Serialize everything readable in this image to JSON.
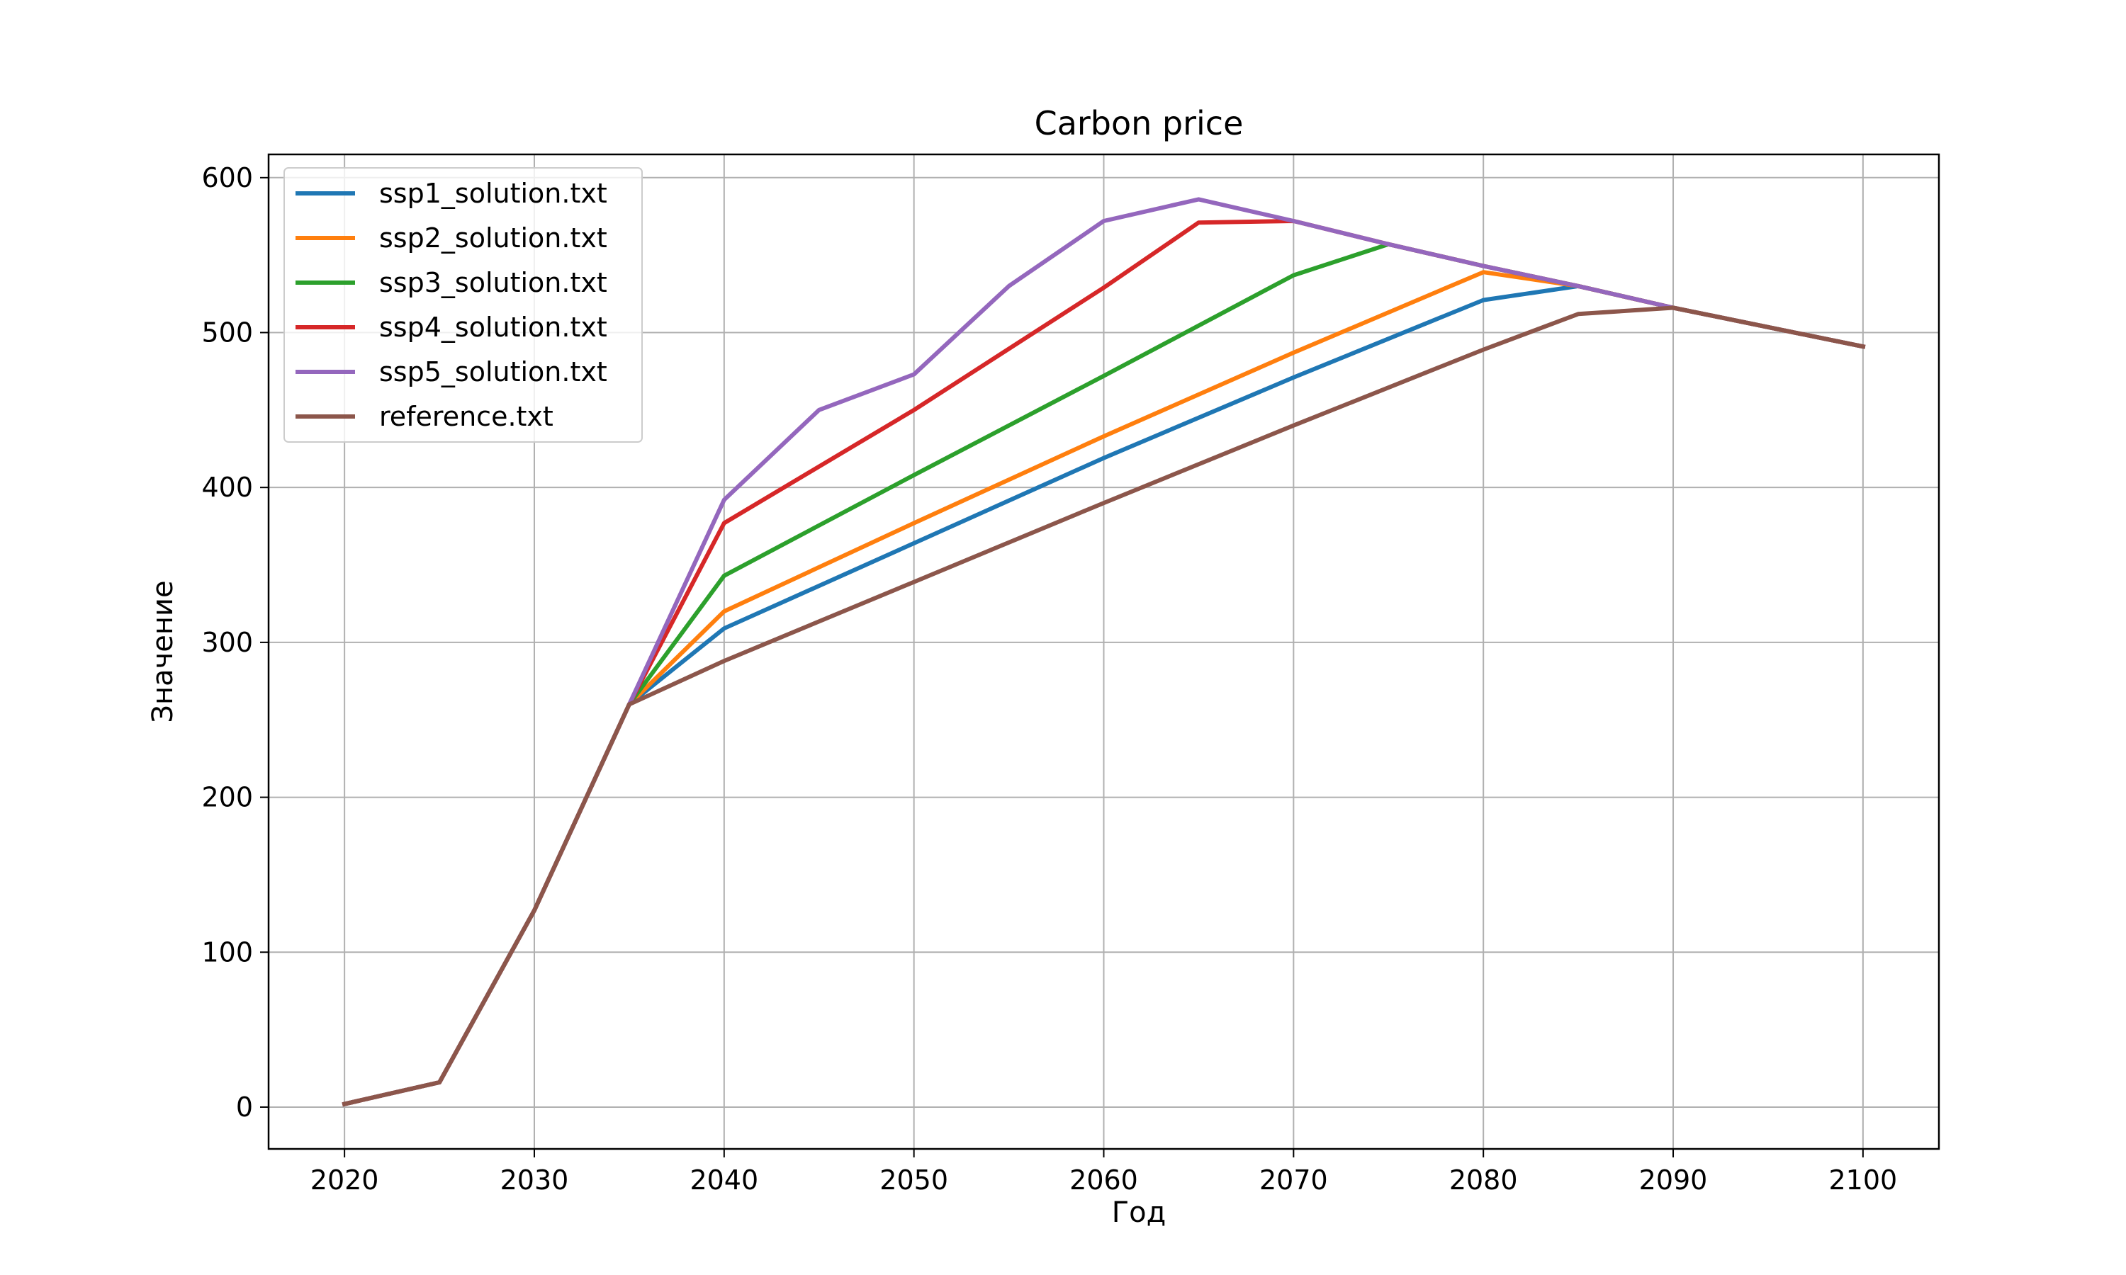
{
  "chart_data": {
    "type": "line",
    "title": "Carbon price",
    "xlabel": "Год",
    "ylabel": "Значение",
    "xlim": [
      2016,
      2104
    ],
    "ylim": [
      -27,
      615
    ],
    "xticks": [
      2020,
      2030,
      2040,
      2050,
      2060,
      2070,
      2080,
      2090,
      2100
    ],
    "yticks": [
      0,
      100,
      200,
      300,
      400,
      500,
      600
    ],
    "grid": true,
    "legend_position": "top-left",
    "series": [
      {
        "name": "ssp1_solution.txt",
        "color": "#1f77b4",
        "x": [
          2020,
          2025,
          2030,
          2035,
          2040,
          2050,
          2060,
          2070,
          2080,
          2085,
          2090,
          2100
        ],
        "y": [
          2,
          16,
          127,
          260,
          309,
          364,
          419,
          471,
          521,
          530,
          516,
          491
        ]
      },
      {
        "name": "ssp2_solution.txt",
        "color": "#ff7f0e",
        "x": [
          2020,
          2025,
          2030,
          2035,
          2040,
          2050,
          2060,
          2070,
          2080,
          2085,
          2090,
          2100
        ],
        "y": [
          2,
          16,
          127,
          260,
          320,
          377,
          433,
          487,
          539,
          530,
          516,
          491
        ]
      },
      {
        "name": "ssp3_solution.txt",
        "color": "#2ca02c",
        "x": [
          2020,
          2025,
          2030,
          2035,
          2040,
          2050,
          2060,
          2070,
          2075,
          2080,
          2085,
          2090,
          2100
        ],
        "y": [
          2,
          16,
          127,
          260,
          343,
          408,
          472,
          537,
          557,
          543,
          530,
          516,
          491
        ]
      },
      {
        "name": "ssp4_solution.txt",
        "color": "#d62728",
        "x": [
          2020,
          2025,
          2030,
          2035,
          2040,
          2050,
          2060,
          2065,
          2070,
          2075,
          2080,
          2085,
          2090,
          2100
        ],
        "y": [
          2,
          16,
          127,
          260,
          377,
          450,
          529,
          571,
          572,
          557,
          543,
          530,
          516,
          491
        ]
      },
      {
        "name": "ssp5_solution.txt",
        "color": "#9467bd",
        "x": [
          2020,
          2025,
          2030,
          2035,
          2040,
          2045,
          2050,
          2055,
          2060,
          2065,
          2070,
          2075,
          2080,
          2085,
          2090,
          2100
        ],
        "y": [
          2,
          16,
          127,
          260,
          392,
          450,
          473,
          530,
          572,
          586,
          572,
          557,
          543,
          530,
          516,
          491
        ]
      },
      {
        "name": "reference.txt",
        "color": "#8c564b",
        "x": [
          2020,
          2025,
          2030,
          2035,
          2040,
          2050,
          2060,
          2070,
          2080,
          2085,
          2090,
          2100
        ],
        "y": [
          2,
          16,
          127,
          260,
          288,
          339,
          390,
          440,
          489,
          512,
          516,
          491
        ]
      }
    ]
  }
}
